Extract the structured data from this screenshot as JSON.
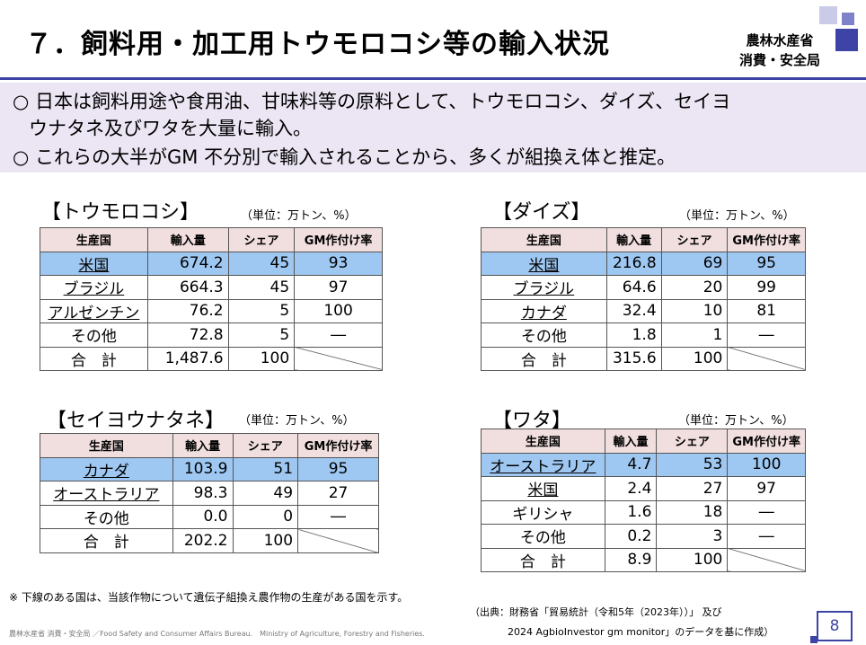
{
  "header": {
    "title": "７．飼料用・加工用トウモロコシ等の輸入状況",
    "ministry_line1": "農林水産省",
    "ministry_line2": "消費・安全局"
  },
  "summary": {
    "bullet1_line1": "○ 日本は飼料用途や食用油、甘味料等の原料として、トウモロコシ、ダイズ、セイヨ",
    "bullet1_line2": "ウナタネ及びワタを大量に輸入。",
    "bullet2": "○ これらの大半がGM 不分別で輸入されることから、多くが組換え体と推定。"
  },
  "table_headers": {
    "country": "生産国",
    "import": "輸入量",
    "share": "シェア",
    "gm": "GM作付け率"
  },
  "corn": {
    "title": "【トウモロコシ】",
    "unit": "（単位：万トン、%）",
    "rows": [
      {
        "country": "米国",
        "import": "674.2",
        "share": "45",
        "gm": "93"
      },
      {
        "country": "ブラジル",
        "import": "664.3",
        "share": "45",
        "gm": "97"
      },
      {
        "country": "アルゼンチン",
        "import": "76.2",
        "share": "5",
        "gm": "100"
      },
      {
        "country": "その他",
        "import": "72.8",
        "share": "5",
        "gm": "―"
      }
    ],
    "total": {
      "label": "合　計",
      "import": "1,487.6",
      "share": "100"
    }
  },
  "soy": {
    "title": "【ダイズ】",
    "unit": "（単位：万トン、%）",
    "rows": [
      {
        "country": "米国",
        "import": "216.8",
        "share": "69",
        "gm": "95"
      },
      {
        "country": "ブラジル",
        "import": "64.6",
        "share": "20",
        "gm": "99"
      },
      {
        "country": "カナダ",
        "import": "32.4",
        "share": "10",
        "gm": "81"
      },
      {
        "country": "その他",
        "import": "1.8",
        "share": "1",
        "gm": "―"
      }
    ],
    "total": {
      "label": "合　計",
      "import": "315.6",
      "share": "100"
    }
  },
  "rapeseed": {
    "title": "【セイヨウナタネ】",
    "unit": "（単位：万トン、%）",
    "rows": [
      {
        "country": "カナダ",
        "import": "103.9",
        "share": "51",
        "gm": "95"
      },
      {
        "country": "オーストラリア",
        "import": "98.3",
        "share": "49",
        "gm": "27"
      },
      {
        "country": "その他",
        "import": "0.0",
        "share": "0",
        "gm": "―"
      }
    ],
    "total": {
      "label": "合　計",
      "import": "202.2",
      "share": "100"
    }
  },
  "cotton": {
    "title": "【ワタ】",
    "unit": "（単位：万トン、%）",
    "rows": [
      {
        "country": "オーストラリア",
        "import": "4.7",
        "share": "53",
        "gm": "100"
      },
      {
        "country": "米国",
        "import": "2.4",
        "share": "27",
        "gm": "97"
      },
      {
        "country": "ギリシャ",
        "import": "1.6",
        "share": "18",
        "gm": "―"
      },
      {
        "country": "その他",
        "import": "0.2",
        "share": "3",
        "gm": "―"
      }
    ],
    "total": {
      "label": "合　計",
      "import": "8.9",
      "share": "100"
    }
  },
  "notes": {
    "underline_note": "※ 下線のある国は、当該作物について遺伝子組換え農作物の生産がある国を示す。",
    "source_line1": "（出典：財務省「貿易統計（令和5年（2023年））」 及び",
    "source_line2": "2024 AgbioInvestor gm monitor」のデータを基に作成）"
  },
  "footer": {
    "text": "農林水産省 消費・安全局 ／Food Safety and Consumer Affairs Bureau.　Ministry of Agriculture, Forestry and Fisheries.",
    "page_number": "8"
  },
  "colors": {
    "accent": "#3d44a6",
    "header_fill": "#f1dede",
    "highlight_row": "#9ec7f2",
    "summary_bg": "#ece6f4"
  }
}
